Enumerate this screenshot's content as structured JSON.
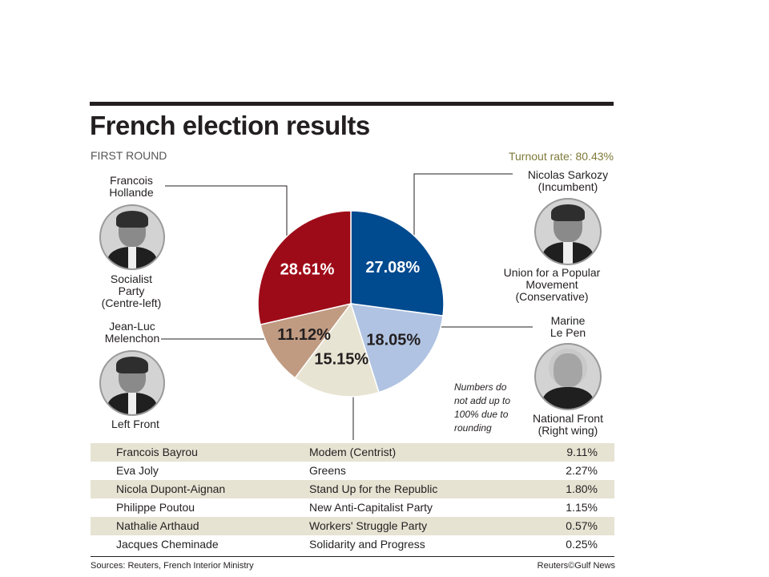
{
  "title": "French election results",
  "subtitle": "FIRST ROUND",
  "turnout": "Turnout rate: 80.43%",
  "note": "Numbers do\nnot add up to\n100% due to\nrounding",
  "candidates": {
    "hollande": {
      "name": "Francois\nHollande",
      "party": "Socialist\nParty\n(Centre-left)"
    },
    "sarkozy": {
      "name": "Nicolas Sarkozy\n(Incumbent)",
      "party": "Union for a Popular\nMovement\n(Conservative)"
    },
    "melenchon": {
      "name": "Jean-Luc\nMelenchon",
      "party": "Left Front"
    },
    "lepen": {
      "name": "Marine\nLe Pen",
      "party": "National Front\n(Right wing)"
    }
  },
  "chart_data": {
    "type": "pie",
    "slices": [
      {
        "label": "27.08%",
        "value": 27.08,
        "color": "#004a8f"
      },
      {
        "label": "18.05%",
        "value": 18.05,
        "color": "#b0c3e2"
      },
      {
        "label": "15.15%",
        "value": 15.15,
        "color": "#e8e4d3"
      },
      {
        "label": "11.12%",
        "value": 11.12,
        "color": "#c09b82"
      },
      {
        "label": "28.61%",
        "value": 28.61,
        "color": "#9e0b18"
      }
    ],
    "label_colors": [
      "#ffffff",
      "#231f20",
      "#231f20",
      "#231f20",
      "#ffffff"
    ]
  },
  "table": [
    {
      "name": "Francois Bayrou",
      "party": "Modem (Centrist)",
      "pct": "9.11%"
    },
    {
      "name": "Eva Joly",
      "party": "Greens",
      "pct": "2.27%"
    },
    {
      "name": "Nicola Dupont-Aignan",
      "party": "Stand Up for the Republic",
      "pct": "1.80%"
    },
    {
      "name": "Philippe Poutou",
      "party": "New Anti-Capitalist Party",
      "pct": "1.15%"
    },
    {
      "name": "Nathalie Arthaud",
      "party": "Workers' Struggle Party",
      "pct": "0.57%"
    },
    {
      "name": "Jacques Cheminade",
      "party": "Solidarity and Progress",
      "pct": "0.25%"
    }
  ],
  "source": "Sources: Reuters, French Interior Ministry",
  "credit": "Reuters©Gulf News"
}
